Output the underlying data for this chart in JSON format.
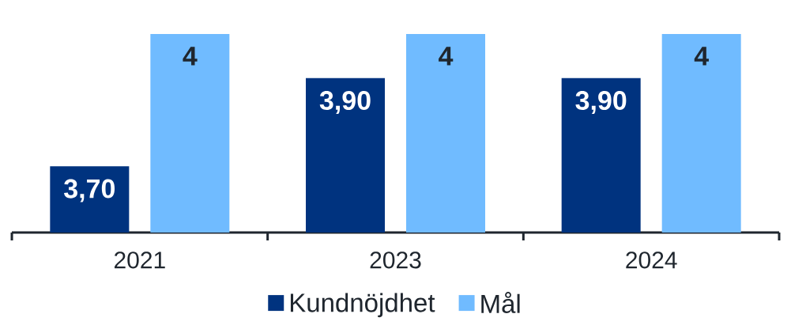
{
  "chart_data": {
    "type": "bar",
    "categories": [
      "2021",
      "2023",
      "2024"
    ],
    "series": [
      {
        "name": "Kundnöjdhet",
        "color": "#00337f",
        "values": [
          3.7,
          3.9,
          3.9
        ],
        "value_labels": [
          "3,70",
          "3,90",
          "3,90"
        ]
      },
      {
        "name": "Mål",
        "color": "#70bbff",
        "values": [
          4,
          4,
          4
        ],
        "value_labels": [
          "4",
          "4",
          "4"
        ]
      }
    ],
    "ylim": [
      3.55,
      4
    ],
    "legend": "bottom"
  }
}
